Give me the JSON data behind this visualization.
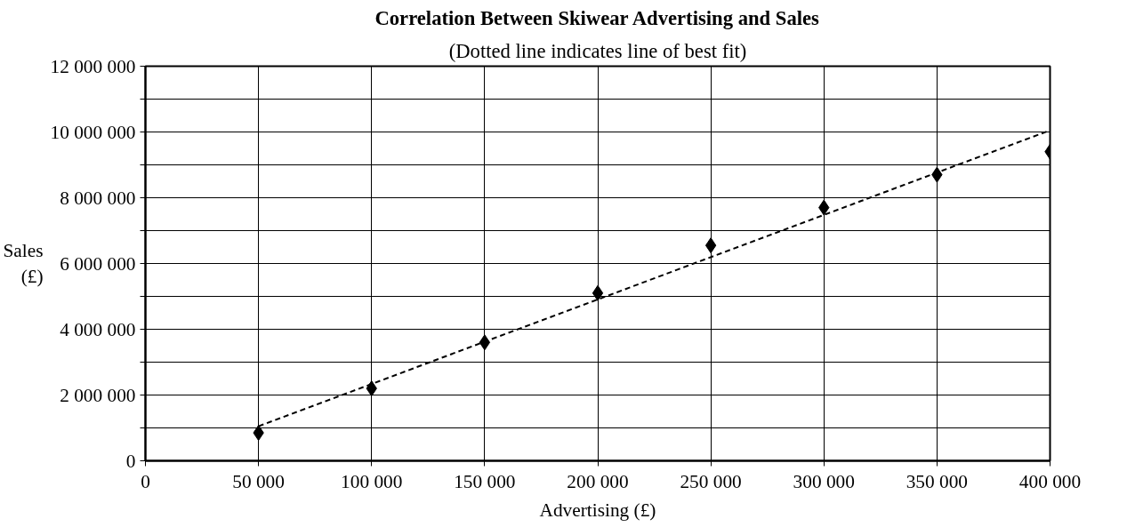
{
  "chart_data": {
    "type": "scatter",
    "title": "Correlation Between Skiwear Advertising and Sales",
    "subtitle": "(Dotted line indicates line of best fit)",
    "xlabel": "Advertising (£)",
    "ylabel": "Sales\n(£)",
    "x": [
      50000,
      100000,
      150000,
      200000,
      250000,
      300000,
      350000,
      400000
    ],
    "series": [
      {
        "color": "#000000",
        "marker": "diamond",
        "values": [
          850000,
          2200000,
          3600000,
          5100000,
          6550000,
          7700000,
          8700000,
          9400000
        ]
      },
      {
        "type": "line",
        "color": "#000000",
        "line_style": "dashed",
        "x": [
          50000,
          400000
        ],
        "values": [
          1050000,
          10050000
        ]
      }
    ],
    "xlim": [
      0,
      400000
    ],
    "ylim": [
      0,
      12000000
    ],
    "xticks": [
      0,
      {
        "value": 50000,
        "label": "50 000"
      },
      {
        "value": 100000,
        "label": "100 000"
      },
      {
        "value": 150000,
        "label": "150 000"
      },
      {
        "value": 200000,
        "label": "200 000"
      },
      {
        "value": 250000,
        "label": "250 000"
      },
      {
        "value": 300000,
        "label": "300 000"
      },
      {
        "value": 350000,
        "label": "350 000"
      },
      {
        "value": 400000,
        "label": "400 000"
      }
    ],
    "yticks": [
      0,
      {
        "value": 1000000,
        "label": null
      },
      {
        "value": 2000000,
        "label": "2 000 000"
      },
      {
        "value": 3000000,
        "label": null
      },
      {
        "value": 4000000,
        "label": "4 000 000"
      },
      {
        "value": 5000000,
        "label": null
      },
      {
        "value": 6000000,
        "label": "6 000 000"
      },
      {
        "value": 7000000,
        "label": null
      },
      {
        "value": 8000000,
        "label": "8 000 000"
      },
      {
        "value": 9000000,
        "label": null
      },
      {
        "value": 10000000,
        "label": "10 000 000"
      },
      {
        "value": 11000000,
        "label": null
      },
      {
        "value": 12000000,
        "label": "12 000 000"
      }
    ],
    "grid": true
  }
}
